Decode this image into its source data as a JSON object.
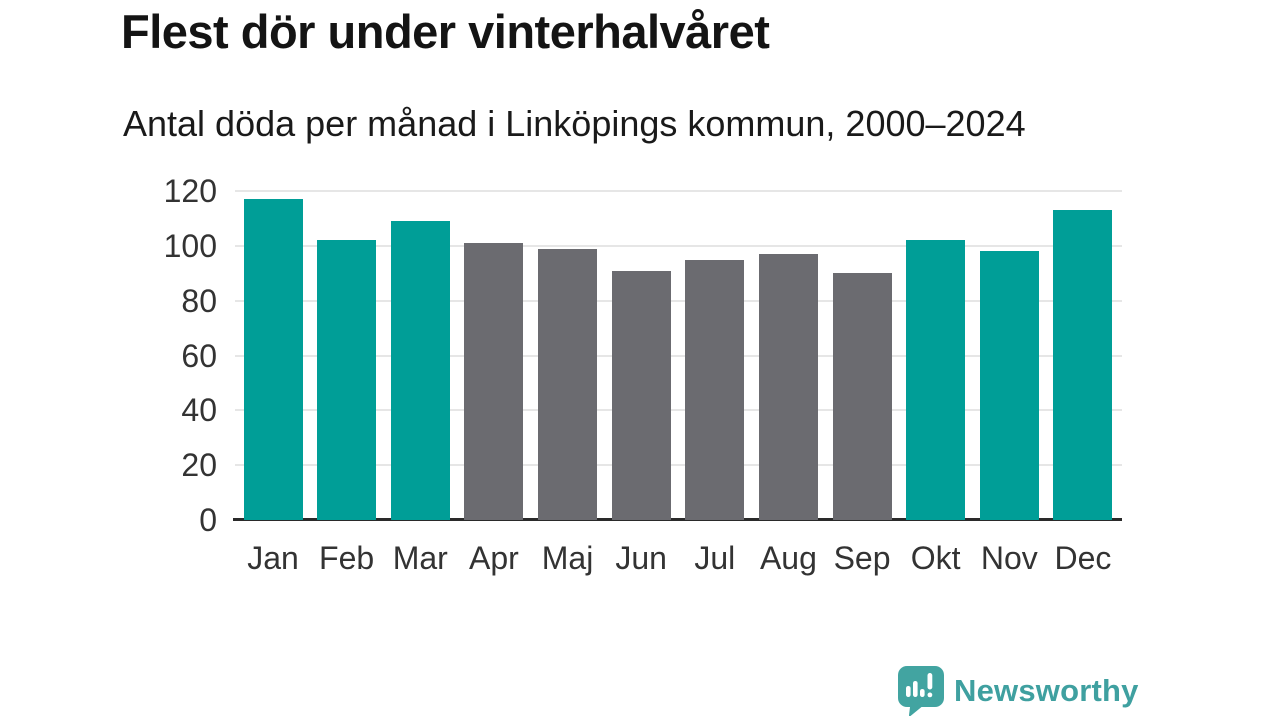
{
  "title": "Flest dör under vinterhalvåret",
  "subtitle": "Antal döda per månad i Linköpings kommun, 2000–2024",
  "colors": {
    "teal": "#009e97",
    "gray": "#6b6b70",
    "grid": "#e6e6e6",
    "axis_line": "#2a2a2a",
    "title_text": "#141414",
    "tick_text": "#333333",
    "logo_teal": "#42a4a1"
  },
  "chart_data": {
    "type": "bar",
    "title": "Flest dör under vinterhalvåret",
    "subtitle": "Antal döda per månad i Linköpings kommun, 2000–2024",
    "categories": [
      "Jan",
      "Feb",
      "Mar",
      "Apr",
      "Maj",
      "Jun",
      "Jul",
      "Aug",
      "Sep",
      "Okt",
      "Nov",
      "Dec"
    ],
    "values": [
      117,
      102,
      109,
      101,
      99,
      91,
      95,
      97,
      90,
      102,
      98,
      113
    ],
    "bar_colors": [
      "teal",
      "teal",
      "teal",
      "gray",
      "gray",
      "gray",
      "gray",
      "gray",
      "gray",
      "teal",
      "teal",
      "teal"
    ],
    "xlabel": "",
    "ylabel": "",
    "ylim": [
      0,
      120
    ],
    "yticks": [
      0,
      20,
      40,
      60,
      80,
      100,
      120
    ],
    "grid": true,
    "legend": false
  },
  "footer": {
    "brand": "Newsworthy",
    "logo_icon": "speech-bubble-bar-chart-exclamation"
  }
}
